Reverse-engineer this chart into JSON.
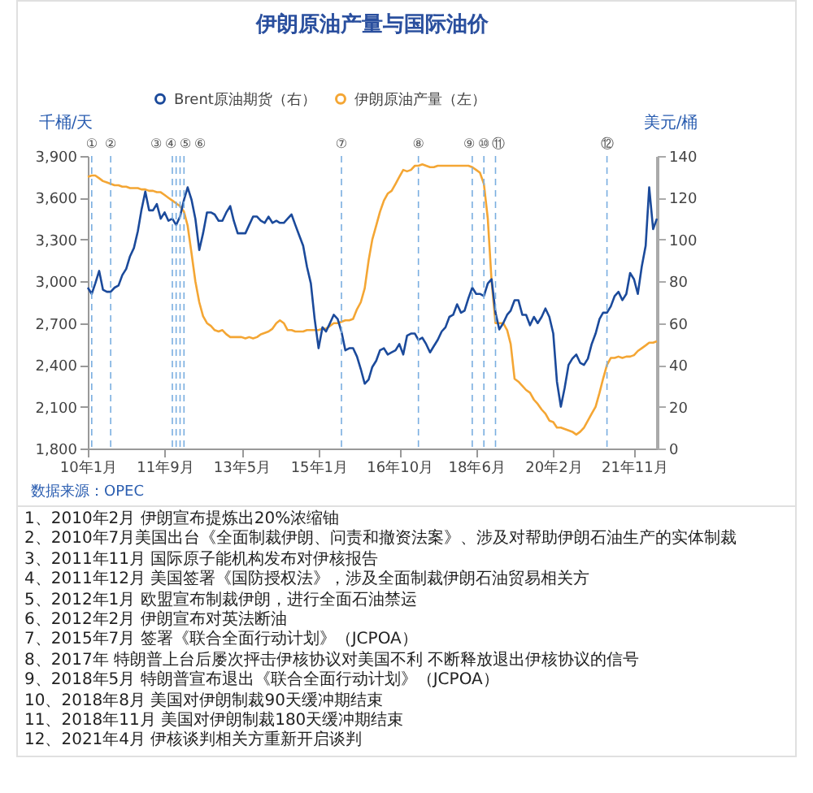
{
  "chart_data": {
    "type": "line",
    "title": "伊朗原油产量与国际油价",
    "ylabel": "千桶/天",
    "y2label": "美元/桶",
    "x": [
      "2010-01",
      "2010-02",
      "2010-03",
      "2010-04",
      "2010-05",
      "2010-06",
      "2010-07",
      "2010-08",
      "2010-09",
      "2010-10",
      "2010-11",
      "2010-12",
      "2011-01",
      "2011-02",
      "2011-03",
      "2011-04",
      "2011-05",
      "2011-06",
      "2011-07",
      "2011-08",
      "2011-09",
      "2011-10",
      "2011-11",
      "2011-12",
      "2012-01",
      "2012-02",
      "2012-03",
      "2012-04",
      "2012-05",
      "2012-06",
      "2012-07",
      "2012-08",
      "2012-09",
      "2012-10",
      "2012-11",
      "2012-12",
      "2013-01",
      "2013-02",
      "2013-03",
      "2013-04",
      "2013-05",
      "2013-06",
      "2013-07",
      "2013-08",
      "2013-09",
      "2013-10",
      "2013-11",
      "2013-12",
      "2014-01",
      "2014-02",
      "2014-03",
      "2014-04",
      "2014-05",
      "2014-06",
      "2014-07",
      "2014-08",
      "2014-09",
      "2014-10",
      "2014-11",
      "2014-12",
      "2015-01",
      "2015-02",
      "2015-03",
      "2015-04",
      "2015-05",
      "2015-06",
      "2015-07",
      "2015-08",
      "2015-09",
      "2015-10",
      "2015-11",
      "2015-12",
      "2016-01",
      "2016-02",
      "2016-03",
      "2016-04",
      "2016-05",
      "2016-06",
      "2016-07",
      "2016-08",
      "2016-09",
      "2016-10",
      "2016-11",
      "2016-12",
      "2017-01",
      "2017-02",
      "2017-03",
      "2017-04",
      "2017-05",
      "2017-06",
      "2017-07",
      "2017-08",
      "2017-09",
      "2017-10",
      "2017-11",
      "2017-12",
      "2018-01",
      "2018-02",
      "2018-03",
      "2018-04",
      "2018-05",
      "2018-06",
      "2018-07",
      "2018-08",
      "2018-09",
      "2018-10",
      "2018-11",
      "2018-12",
      "2019-01",
      "2019-02",
      "2019-03",
      "2019-04",
      "2019-05",
      "2019-06",
      "2019-07",
      "2019-08",
      "2019-09",
      "2019-10",
      "2019-11",
      "2019-12",
      "2020-01",
      "2020-02",
      "2020-03",
      "2020-04",
      "2020-05",
      "2020-06",
      "2020-07",
      "2020-08",
      "2020-09",
      "2020-10",
      "2020-11",
      "2020-12",
      "2021-01",
      "2021-02",
      "2021-03",
      "2021-04",
      "2021-05",
      "2021-06",
      "2021-07",
      "2021-08",
      "2021-09",
      "2021-10",
      "2021-11",
      "2021-12",
      "2022-01",
      "2022-02",
      "2022-03",
      "2022-04",
      "2022-05"
    ],
    "series": [
      {
        "name": "Brent原油期货（右）",
        "color": "#1b4a9b",
        "axis": "y2",
        "values": [
          77,
          74,
          79,
          85,
          76,
          75,
          75,
          77,
          78,
          83,
          86,
          92,
          96,
          104,
          114,
          123,
          114,
          114,
          117,
          110,
          113,
          109,
          110,
          107,
          111,
          119,
          125,
          119,
          110,
          95,
          103,
          113,
          113,
          112,
          109,
          109,
          113,
          116,
          109,
          103,
          103,
          103,
          107,
          111,
          111,
          109,
          108,
          111,
          108,
          109,
          108,
          108,
          110,
          112,
          107,
          102,
          97,
          87,
          79,
          62,
          48,
          58,
          56,
          60,
          64,
          62,
          56,
          47,
          48,
          48,
          44,
          38,
          31,
          33,
          39,
          42,
          47,
          48,
          45,
          46,
          47,
          50,
          45,
          54,
          55,
          55,
          52,
          53,
          50,
          46,
          49,
          52,
          56,
          58,
          63,
          64,
          69,
          65,
          66,
          72,
          77,
          74,
          74,
          73,
          79,
          81,
          65,
          57,
          60,
          64,
          66,
          71,
          71,
          64,
          64,
          59,
          63,
          60,
          63,
          67,
          63,
          55,
          32,
          20,
          29,
          40,
          43,
          45,
          41,
          40,
          43,
          50,
          55,
          62,
          65,
          65,
          68,
          73,
          75,
          71,
          74,
          84,
          81,
          74,
          87,
          97,
          125,
          105,
          110
        ]
      },
      {
        "name": "伊朗原油产量（左）",
        "color": "#f4a634",
        "values": [
          3750,
          3760,
          3760,
          3740,
          3720,
          3710,
          3700,
          3690,
          3690,
          3680,
          3680,
          3670,
          3670,
          3670,
          3660,
          3660,
          3650,
          3650,
          3640,
          3640,
          3620,
          3600,
          3580,
          3560,
          3540,
          3500,
          3400,
          3200,
          3000,
          2850,
          2750,
          2700,
          2680,
          2650,
          2640,
          2650,
          2620,
          2600,
          2600,
          2600,
          2600,
          2590,
          2600,
          2590,
          2600,
          2620,
          2630,
          2640,
          2660,
          2700,
          2720,
          2700,
          2650,
          2650,
          2640,
          2640,
          2640,
          2650,
          2650,
          2650,
          2650,
          2660,
          2660,
          2680,
          2700,
          2700,
          2710,
          2720,
          2720,
          2730,
          2800,
          2850,
          2950,
          3150,
          3300,
          3400,
          3500,
          3580,
          3630,
          3650,
          3700,
          3750,
          3800,
          3790,
          3800,
          3830,
          3830,
          3840,
          3830,
          3820,
          3820,
          3830,
          3830,
          3830,
          3830,
          3830,
          3830,
          3830,
          3830,
          3830,
          3820,
          3800,
          3780,
          3700,
          3450,
          3000,
          2700,
          2700,
          2700,
          2650,
          2550,
          2300,
          2280,
          2250,
          2220,
          2200,
          2150,
          2120,
          2080,
          2050,
          2000,
          1990,
          1950,
          1950,
          1940,
          1930,
          1920,
          1900,
          1920,
          1950,
          2000,
          2050,
          2100,
          2200,
          2300,
          2400,
          2450,
          2450,
          2460,
          2450,
          2460,
          2460,
          2470,
          2500,
          2520,
          2540,
          2560,
          2560,
          2570
        ]
      }
    ],
    "xlim": [
      "2010-01",
      "2022-05"
    ],
    "xticks": [
      {
        "value": "2010-01",
        "label": "10年1月"
      },
      {
        "value": "2011-09",
        "label": "11年9月"
      },
      {
        "value": "2013-05",
        "label": "13年5月"
      },
      {
        "value": "2015-01",
        "label": "15年1月"
      },
      {
        "value": "2016-10",
        "label": "16年10月"
      },
      {
        "value": "2018-06",
        "label": "18年6月"
      },
      {
        "value": "2020-02",
        "label": "20年2月"
      },
      {
        "value": "2021-11",
        "label": "21年11月"
      }
    ],
    "ylim": [
      1800,
      3900
    ],
    "yticks": [
      {
        "value": 1800,
        "label": "1,800"
      },
      {
        "value": 2100,
        "label": "2,100"
      },
      {
        "value": 2400,
        "label": "2,400"
      },
      {
        "value": 2700,
        "label": "2,700"
      },
      {
        "value": 3000,
        "label": "3,000"
      },
      {
        "value": 3300,
        "label": "3,300"
      },
      {
        "value": 3600,
        "label": "3,600"
      },
      {
        "value": 3900,
        "label": "3,900"
      }
    ],
    "y2lim": [
      0,
      140
    ],
    "y2ticks": [
      0,
      20,
      40,
      60,
      80,
      100,
      120,
      140
    ],
    "legend": "top",
    "ref_lines": [
      {
        "axis": "x",
        "value": "2010-02",
        "label": "①",
        "color": "#7aaee0",
        "line_style": "dashed"
      },
      {
        "axis": "x",
        "value": "2010-07",
        "label": "②",
        "color": "#7aaee0",
        "line_style": "dashed"
      },
      {
        "axis": "x",
        "value": "2011-11",
        "label": "③",
        "color": "#7aaee0",
        "line_style": "dashed"
      },
      {
        "axis": "x",
        "value": "2011-12",
        "label": "④",
        "color": "#7aaee0",
        "line_style": "dashed"
      },
      {
        "axis": "x",
        "value": "2012-01",
        "label": "⑤",
        "color": "#7aaee0",
        "line_style": "dashed"
      },
      {
        "axis": "x",
        "value": "2012-02",
        "label": "⑥",
        "color": "#7aaee0",
        "line_style": "dashed"
      },
      {
        "axis": "x",
        "value": "2015-07",
        "label": "⑦",
        "color": "#7aaee0",
        "line_style": "dashed"
      },
      {
        "axis": "x",
        "value": "2017-03",
        "label": "⑧",
        "color": "#7aaee0",
        "line_style": "dashed"
      },
      {
        "axis": "x",
        "value": "2018-05",
        "label": "⑨",
        "color": "#7aaee0",
        "line_style": "dashed"
      },
      {
        "axis": "x",
        "value": "2018-08",
        "label": "⑩",
        "color": "#7aaee0",
        "line_style": "dashed"
      },
      {
        "axis": "x",
        "value": "2018-11",
        "label": "⑪",
        "color": "#7aaee0",
        "line_style": "dashed"
      },
      {
        "axis": "x",
        "value": "2021-04",
        "label": "⑫",
        "color": "#7aaee0",
        "line_style": "dashed"
      }
    ],
    "annotations": [
      "数据来源：OPEC",
      "1、2010年2月 伊朗宣布提炼出20%浓缩铀",
      "2、2010年7月美国出台《全面制裁伊朗、问责和撤资法案》、涉及对帮助伊朗石油生产的实体制裁",
      "3、2011年11月 国际原子能机构发布对伊核报告",
      "4、2011年12月 美国签署《国防授权法》，涉及全面制裁伊朗石油贸易相关方",
      "5、2012年1月 欧盟宣布制裁伊朗，进行全面石油禁运",
      "6、2012年2月 伊朗宣布对英法断油",
      "7、2015年7月 签署《联合全面行动计划》（JCPOA）",
      "8、2017年 特朗普上台后屡次抨击伊核协议对美国不利 不断释放退出伊核协议的信号",
      "9、2018年5月 特朗普宣布退出《联合全面行动计划》（JCPOA）",
      "10、2018年8月 美国对伊朗制裁90天缓冲期结束",
      "11、2018年11月 美国对伊朗制裁180天缓冲期结束",
      "12、2021年4月 伊核谈判相关方重新开启谈判"
    ]
  }
}
